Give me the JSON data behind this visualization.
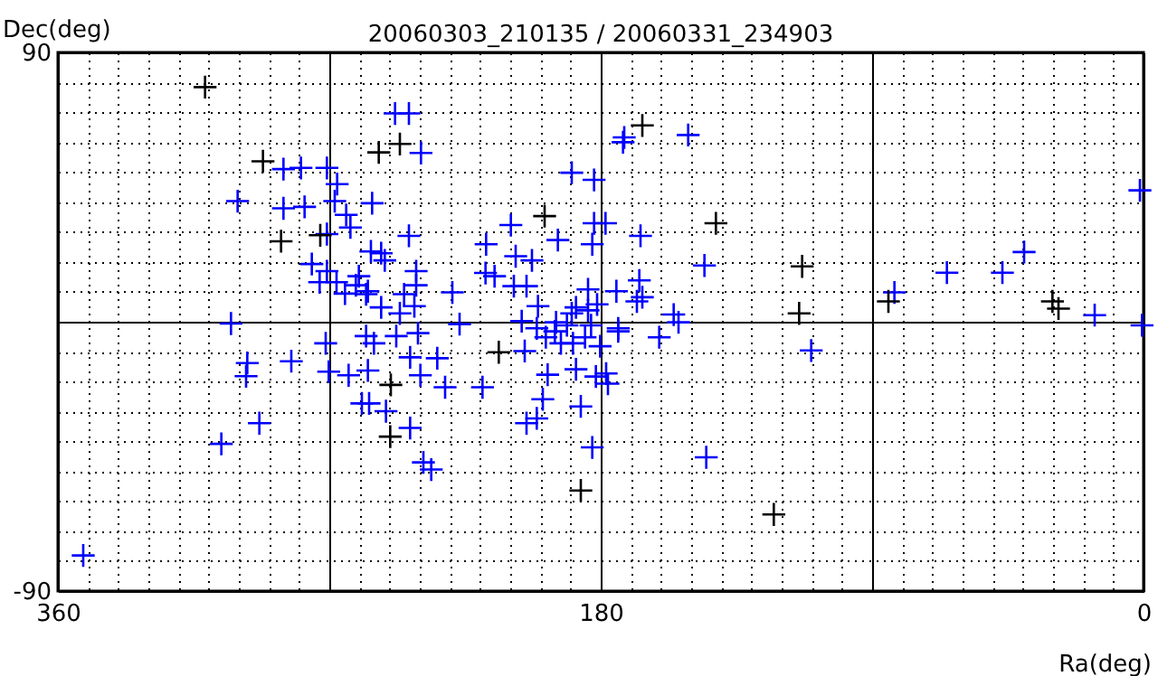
{
  "chart_data": {
    "type": "scatter",
    "title": "20060303_210135 / 20060331_234903",
    "xlabel": "Ra(deg)",
    "ylabel": "Dec(deg)",
    "xlim": [
      360,
      0
    ],
    "ylim": [
      -90,
      90
    ],
    "xticks": [
      360,
      {
        "value": 350,
        "label": null
      },
      {
        "value": 340,
        "label": null
      },
      {
        "value": 330,
        "label": null
      },
      {
        "value": 320,
        "label": null
      },
      {
        "value": 310,
        "label": null
      },
      {
        "value": 300,
        "label": null
      },
      {
        "value": 290,
        "label": null
      },
      {
        "value": 280,
        "label": null
      },
      {
        "value": 270,
        "label": null
      },
      {
        "value": 260,
        "label": null
      },
      {
        "value": 250,
        "label": null
      },
      {
        "value": 240,
        "label": null
      },
      {
        "value": 230,
        "label": null
      },
      {
        "value": 220,
        "label": null
      },
      {
        "value": 210,
        "label": null
      },
      {
        "value": 200,
        "label": null
      },
      {
        "value": 190,
        "label": null
      },
      180,
      {
        "value": 170,
        "label": null
      },
      {
        "value": 160,
        "label": null
      },
      {
        "value": 150,
        "label": null
      },
      {
        "value": 140,
        "label": null
      },
      {
        "value": 130,
        "label": null
      },
      {
        "value": 120,
        "label": null
      },
      {
        "value": 110,
        "label": null
      },
      {
        "value": 100,
        "label": null
      },
      {
        "value": 90,
        "label": null
      },
      {
        "value": 80,
        "label": null
      },
      {
        "value": 70,
        "label": null
      },
      {
        "value": 60,
        "label": null
      },
      {
        "value": 50,
        "label": null
      },
      {
        "value": 40,
        "label": null
      },
      {
        "value": 30,
        "label": null
      },
      {
        "value": 20,
        "label": null
      },
      {
        "value": 10,
        "label": null
      },
      0
    ],
    "yticks": [
      -90,
      {
        "value": -80,
        "label": null
      },
      {
        "value": -70,
        "label": null
      },
      {
        "value": -60,
        "label": null
      },
      {
        "value": -50,
        "label": null
      },
      {
        "value": -40,
        "label": null
      },
      {
        "value": -30,
        "label": null
      },
      {
        "value": -20,
        "label": null
      },
      {
        "value": -10,
        "label": null
      },
      {
        "value": 0,
        "label": null
      },
      {
        "value": 10,
        "label": null
      },
      {
        "value": 20,
        "label": null
      },
      {
        "value": 30,
        "label": null
      },
      {
        "value": 40,
        "label": null
      },
      {
        "value": 50,
        "label": null
      },
      {
        "value": 60,
        "label": null
      },
      {
        "value": 70,
        "label": null
      },
      {
        "value": 80,
        "label": null
      },
      90
    ],
    "grid": true,
    "marker": "cross",
    "series": [
      {
        "color": "#0000ff",
        "x": [
          248.2,
          243.6,
          239.6,
          285.2,
          279.4,
          270.8,
          267.4,
          300.4,
          285.2,
          278.2,
          268.2,
          255.8,
          264.4,
          263,
          243.6,
          270.8,
          256.2,
          252.8,
          251.6,
          241.2,
          275.8,
          270.8,
          273.2,
          267.6,
          260.2,
          261.2,
          264.8,
          257.2,
          257.8,
          252.8,
          245.2,
          241.2,
          241.8,
          246.6,
          302.6,
          172.2,
          172.6,
          151,
          189.6,
          182.2,
          182.2,
          178.4,
          209.8,
          194.2,
          182.8,
          166.8,
          218,
          208.2,
          202.8,
          145.6,
          218.2,
          215.2,
          167.2,
          208.8,
          204.6,
          229.2,
          174.8,
          166.2,
          168,
          184.2,
          200.8,
          155.8,
          154.2,
          226.8,
          206.2,
          188.2,
          181.2,
          184.2,
          194.8,
          189.6,
          183.2,
          174.2,
          271.2,
          257.8,
          255.2,
          247.8,
          240.6,
          297.2,
          297.6,
          282.6,
          270.2,
          263.6,
          257.2,
          243.2,
          239.8,
          259.2,
          256.8,
          251.2,
          243.2,
          293.2,
          305.8,
          351.6,
          238.8,
          234.2,
          231.6,
          219.2,
          205.2,
          201.2,
          198.2,
          195.2,
          193.2,
          189.2,
          185.2,
          180.2,
          191.2,
          174.2,
          160.6,
          197.6,
          188.2,
          181.6,
          178.2,
          177.6,
          199.2,
          186.6,
          201.2,
          204.6,
          182.8,
          145,
          236.2,
          82.6,
          65.2,
          46.8,
          39.6,
          16.2,
          1.2,
          0.5,
          110.2
        ],
        "values": [
          69.6,
          69.6,
          56.4,
          51,
          51.4,
          51.4,
          46,
          40.3,
          37.9,
          38.4,
          40.3,
          39.6,
          35.7,
          31.5,
          28.7,
          29.3,
          23.5,
          22.9,
          20.5,
          16.9,
          19.3,
          16.9,
          13.2,
          13.2,
          15.2,
          12.2,
          9.4,
          10.2,
          9.2,
          4.8,
          9.2,
          12.2,
          5.2,
          2.8,
          -0.6,
          61.6,
          60,
          62.4,
          49.8,
          47.4,
          32.9,
          32.9,
          32.3,
          27.3,
          25.9,
          28.7,
          25.9,
          21.9,
          20.5,
          18.8,
          16.3,
          15.2,
          13.8,
          11.9,
          11.9,
          9.8,
          10.2,
          8.2,
          6.8,
          10.8,
          5.2,
          2.4,
          -0.2,
          -0.8,
          0.2,
          4.8,
          5.8,
          3.8,
          -0.2,
          2.8,
          -1.2,
          -2.2,
          -7.2,
          -4.8,
          -7.2,
          -4.8,
          -3.8,
          -13.8,
          -18.2,
          -13.2,
          -16.7,
          -17.9,
          -16.3,
          -11.9,
          -17.9,
          -27.3,
          -27.3,
          -29.9,
          -35.5,
          -33.9,
          -40.8,
          -78.1,
          -47,
          -12.2,
          -21.9,
          -21.9,
          -9.8,
          -2.2,
          -5.2,
          -3.2,
          -7.2,
          -7.2,
          -5.2,
          -8.2,
          -1.2,
          -3.2,
          -5.2,
          -17.7,
          -15.9,
          -18.3,
          -17.3,
          -20.7,
          -25.9,
          -28.3,
          -32.3,
          -33.9,
          -42,
          -45.3,
          -49.4,
          9.8,
          16.4,
          16.4,
          23.3,
          2.2,
          43.9,
          -1.2,
          -9.6
        ]
      },
      {
        "color": "#000000",
        "x": [
          311.2,
          246.6,
          253.6,
          292,
          286,
          273,
          166.2,
          198.6,
          141.8,
          249.8,
          213.8,
          186.6,
          122.6,
          113.2,
          114.2,
          84.6,
          30.2,
          28.2,
          249.6
        ],
        "values": [
          78.4,
          59.4,
          56.6,
          53.6,
          26.9,
          28.9,
          65.6,
          35.3,
          32.9,
          -38.4,
          -10.2,
          -56.4,
          -64.4,
          18.5,
          2.8,
          6.8,
          6.8,
          4.4,
          -21.1
        ]
      }
    ]
  }
}
